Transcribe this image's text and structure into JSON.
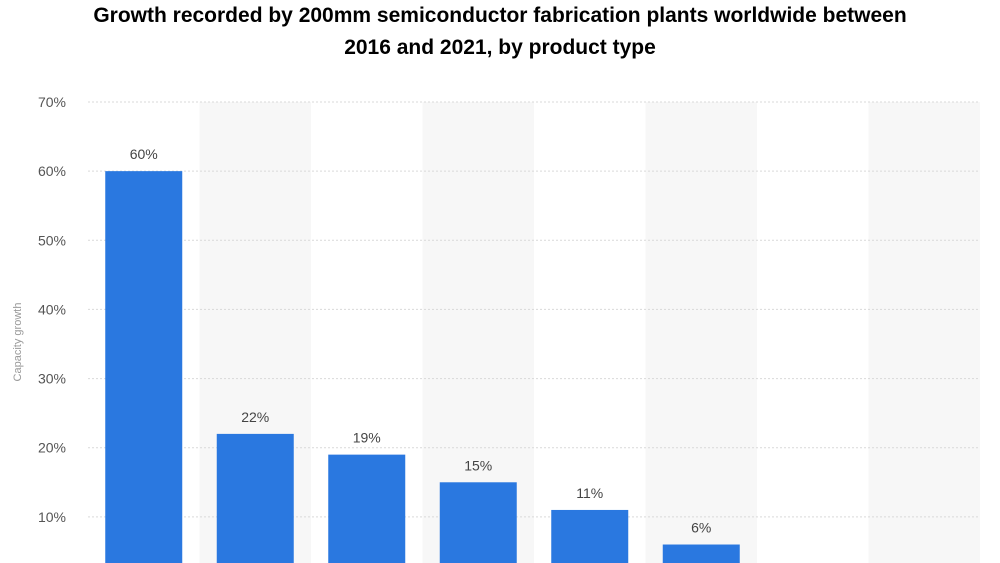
{
  "chart_data": {
    "type": "bar",
    "title": "Growth recorded by 200mm semiconductor fabrication plants worldwide between 2016 and 2021, by product type",
    "title_lines": [
      "Growth recorded by 200mm semiconductor fabrication plants worldwide between",
      "2016 and 2021, by product type"
    ],
    "ylabel": "Capacity growth",
    "ylim": [
      0,
      70
    ],
    "yticks": [
      10,
      20,
      30,
      40,
      50,
      60,
      70
    ],
    "ytick_labels": [
      "10%",
      "20%",
      "30%",
      "40%",
      "50%",
      "60%",
      "70%"
    ],
    "value_suffix": "%",
    "values": [
      60,
      22,
      19,
      15,
      11,
      6,
      0,
      0
    ],
    "data_labels": [
      "60%",
      "22%",
      "19%",
      "15%",
      "11%",
      "6%",
      "",
      ""
    ],
    "grid": true,
    "colors": {
      "bar": "#2a78e0",
      "band": "#f7f7f7",
      "grid": "#d9d9d9"
    }
  }
}
